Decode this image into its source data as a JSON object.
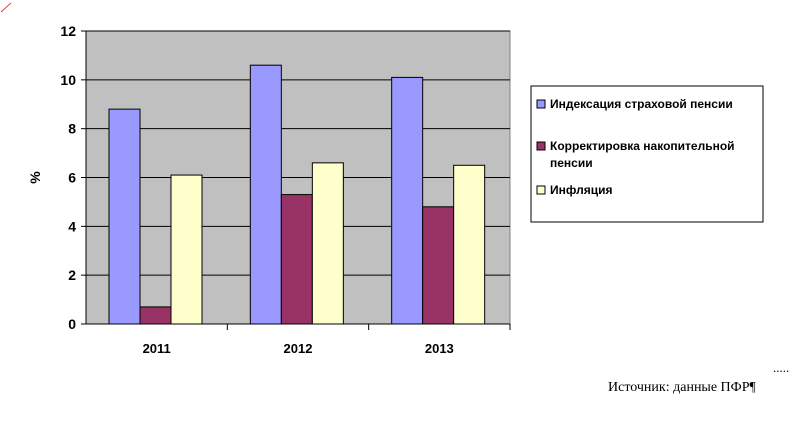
{
  "chart_data": {
    "type": "bar",
    "categories": [
      "2011",
      "2012",
      "2013"
    ],
    "series": [
      {
        "name": "Индексация страховой пенсии",
        "values": [
          8.8,
          10.6,
          10.1
        ],
        "color": "#9999ff"
      },
      {
        "name": "Корректировка накопительной пенсии",
        "values": [
          0.7,
          5.3,
          4.8
        ],
        "color": "#993366"
      },
      {
        "name": "Инфляция",
        "values": [
          6.1,
          6.6,
          6.5
        ],
        "color": "#ffffcc"
      }
    ],
    "ylabel": "%",
    "ylim": [
      0,
      12
    ],
    "yticks": [
      0,
      2,
      4,
      6,
      8,
      10,
      12
    ],
    "grid": true,
    "plot_background": "#c0c0c0",
    "legend_position": "right"
  },
  "source_text": "Источник: данные ПФР",
  "pilcrow": "¶",
  "dots": "....."
}
